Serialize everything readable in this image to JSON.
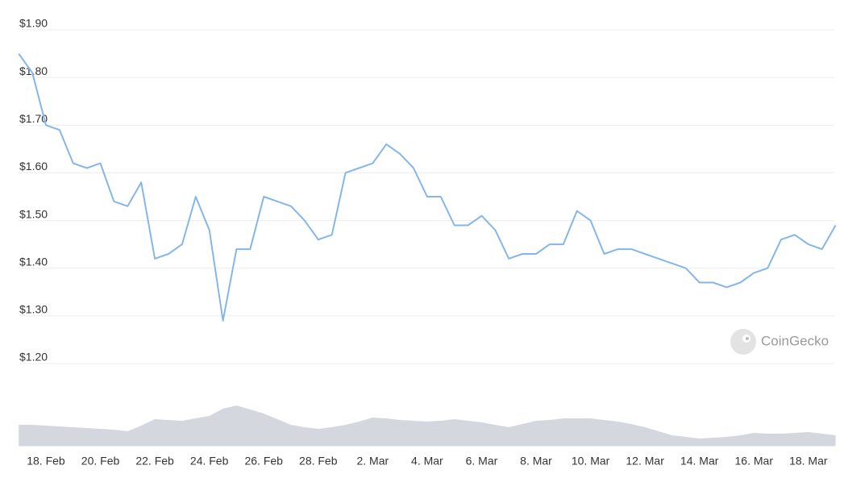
{
  "chart_data": {
    "type": "line",
    "categories": [
      null,
      null,
      "18. Feb",
      null,
      null,
      null,
      "20. Feb",
      null,
      null,
      null,
      "22. Feb",
      null,
      null,
      null,
      "24. Feb",
      null,
      null,
      null,
      "26. Feb",
      null,
      null,
      null,
      "28. Feb",
      null,
      null,
      null,
      "2. Mar",
      null,
      null,
      null,
      "4. Mar",
      null,
      null,
      null,
      "6. Mar",
      null,
      null,
      null,
      "8. Mar",
      null,
      null,
      null,
      "10. Mar",
      null,
      null,
      null,
      "12. Mar",
      null,
      null,
      null,
      "14. Mar",
      null,
      null,
      null,
      "16. Mar",
      null,
      null,
      null,
      "18. Mar",
      null,
      null
    ],
    "series": [
      {
        "color": "#85b6ea",
        "values": [
          1.85,
          1.81,
          1.7,
          1.69,
          1.62,
          1.61,
          1.62,
          1.54,
          1.53,
          1.58,
          1.42,
          1.43,
          1.45,
          1.55,
          1.48,
          1.29,
          1.44,
          1.44,
          1.55,
          1.54,
          1.53,
          1.5,
          1.46,
          1.47,
          1.6,
          1.61,
          1.62,
          1.66,
          1.64,
          1.61,
          1.55,
          1.55,
          1.49,
          1.49,
          1.51,
          1.48,
          1.42,
          1.43,
          1.43,
          1.45,
          1.45,
          1.52,
          1.5,
          1.43,
          1.44,
          1.44,
          1.43,
          1.42,
          1.41,
          1.4,
          1.37,
          1.37,
          1.36,
          1.37,
          1.39,
          1.4,
          1.46,
          1.47,
          1.45,
          1.44,
          1.49
        ]
      }
    ],
    "volume": {
      "color": "#d4d7dd",
      "y2lim": [
        0,
        60
      ],
      "values": [
        26,
        26,
        25,
        24,
        23,
        22,
        21,
        20,
        18,
        25,
        33,
        32,
        31,
        34,
        37,
        46,
        50,
        45,
        40,
        33,
        26,
        23,
        21,
        23,
        26,
        30,
        35,
        34,
        32,
        31,
        30,
        31,
        33,
        31,
        29,
        26,
        23,
        27,
        31,
        32,
        34,
        34,
        34,
        32,
        30,
        27,
        23,
        18,
        13,
        11,
        9,
        10,
        11,
        13,
        16,
        15,
        15,
        16,
        17,
        15,
        13
      ]
    },
    "ylim": [
      1.2,
      1.9
    ],
    "yticks": [
      {
        "value": 1.2,
        "label": "$1.20"
      },
      {
        "value": 1.3,
        "label": "$1.30"
      },
      {
        "value": 1.4,
        "label": "$1.40"
      },
      {
        "value": 1.5,
        "label": "$1.50"
      },
      {
        "value": 1.6,
        "label": "$1.60"
      },
      {
        "value": 1.7,
        "label": "$1.70"
      },
      {
        "value": 1.8,
        "label": "$1.80"
      },
      {
        "value": 1.9,
        "label": "$1.90"
      }
    ],
    "grid": true,
    "watermark": "CoinGecko"
  }
}
